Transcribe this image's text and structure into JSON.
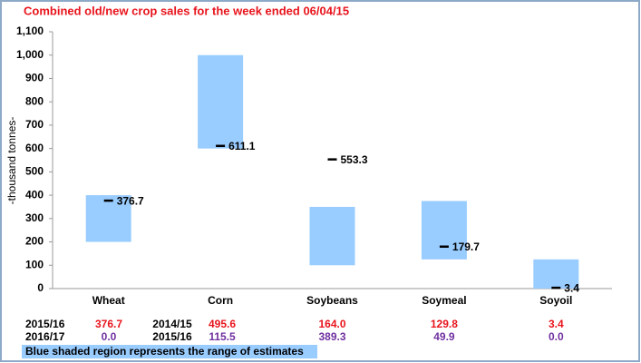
{
  "chart_data": {
    "type": "floating_bar",
    "title": "Combined old/new crop sales for the week ended 06/04/15",
    "y_label": "-thousand tonnes-",
    "categories": [
      "Wheat",
      "Corn",
      "Soybeans",
      "Soymeal",
      "Soyoil"
    ],
    "range": {
      "color": "#99ccff",
      "low": [
        200,
        600,
        100,
        125,
        0
      ],
      "high": [
        400,
        1000,
        350,
        375,
        125
      ]
    },
    "actual": {
      "color": "#000000",
      "values": [
        376.7,
        611.1,
        553.3,
        179.7,
        3.4
      ]
    },
    "ylim": [
      0,
      1100
    ],
    "yticks": [
      0,
      100,
      200,
      300,
      400,
      500,
      600,
      700,
      800,
      900,
      {
        "value": 1000,
        "label": "1,000"
      },
      {
        "value": 1100,
        "label": "1,100"
      }
    ],
    "grid": false
  },
  "table": {
    "rows": [
      [
        "2015/16",
        "376.7",
        "2014/15",
        "495.6",
        "164.0",
        "129.8",
        "3.4"
      ],
      [
        "2016/17",
        "0.0",
        "2015/16",
        "115.5",
        "389.3",
        "49.9",
        "0.0"
      ]
    ]
  },
  "note": "Blue shaded region represents the range of estimates"
}
